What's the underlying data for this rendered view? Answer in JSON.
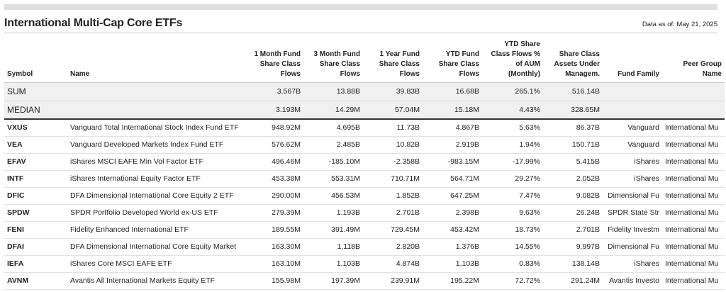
{
  "page": {
    "title": "International Multi-Cap Core ETFs",
    "as_of": "Data as of: May 21, 2025"
  },
  "columns": {
    "symbol": "Symbol",
    "name": "Name",
    "flows_1m_l1": "1 Month Fund",
    "flows_1m_l2": "Share Class",
    "flows_1m_l3": "Flows",
    "flows_3m_l1": "3 Month Fund",
    "flows_3m_l2": "Share Class",
    "flows_3m_l3": "Flows",
    "flows_1y_l1": "1 Year Fund",
    "flows_1y_l2": "Share Class",
    "flows_1y_l3": "Flows",
    "flows_ytd_l1": "YTD Fund",
    "flows_ytd_l2": "Share Class",
    "flows_ytd_l3": "Flows",
    "pct_aum_l1": "YTD Share",
    "pct_aum_l2": "Class Flows %",
    "pct_aum_l3": "of AUM",
    "pct_aum_l4": "(Monthly)",
    "aum_l1": "Share Class",
    "aum_l2": "Assets Under",
    "aum_l3": "Managem.",
    "family": "Fund Family",
    "peer_l1": "Peer Group",
    "peer_l2": "Name"
  },
  "summary": [
    {
      "label": "SUM",
      "m1": "3.567B",
      "m3": "13.88B",
      "y1": "39.83B",
      "ytd": "16.68B",
      "pct": "265.1%",
      "aum": "516.14B"
    },
    {
      "label": "MEDIAN",
      "m1": "3.193M",
      "m3": "14.29M",
      "y1": "57.04M",
      "ytd": "15.18M",
      "pct": "4.43%",
      "aum": "328.65M"
    }
  ],
  "rows": [
    {
      "symbol": "VXUS",
      "name": "Vanguard Total International Stock Index Fund ETF",
      "m1": "948.92M",
      "m3": "4.695B",
      "y1": "11.73B",
      "ytd": "4.867B",
      "pct": "5.63%",
      "aum": "86.37B",
      "family": "Vanguard",
      "peer": "International Mu"
    },
    {
      "symbol": "VEA",
      "name": "Vanguard Developed Markets Index Fund ETF",
      "m1": "576.62M",
      "m3": "2.485B",
      "y1": "10.82B",
      "ytd": "2.919B",
      "pct": "1.94%",
      "aum": "150.71B",
      "family": "Vanguard",
      "peer": "International Mu"
    },
    {
      "symbol": "EFAV",
      "name": "iShares MSCI EAFE Min Vol Factor ETF",
      "m1": "496.46M",
      "m3": "-185.10M",
      "y1": "-2.358B",
      "ytd": "-983.15M",
      "pct": "-17.99%",
      "aum": "5.415B",
      "family": "iShares",
      "peer": "International Mu"
    },
    {
      "symbol": "INTF",
      "name": "iShares International Equity Factor ETF",
      "m1": "453.38M",
      "m3": "553.31M",
      "y1": "710.71M",
      "ytd": "564.71M",
      "pct": "29.27%",
      "aum": "2.052B",
      "family": "iShares",
      "peer": "International Mu"
    },
    {
      "symbol": "DFIC",
      "name": "DFA Dimensional International Core Equity 2 ETF",
      "m1": "290.00M",
      "m3": "456.53M",
      "y1": "1.852B",
      "ytd": "647.25M",
      "pct": "7.47%",
      "aum": "9.082B",
      "family": "Dimensional Fu",
      "peer": "International Mu"
    },
    {
      "symbol": "SPDW",
      "name": "SPDR Portfolio Developed World ex-US ETF",
      "m1": "279.39M",
      "m3": "1.193B",
      "y1": "2.701B",
      "ytd": "2.398B",
      "pct": "9.63%",
      "aum": "26.24B",
      "family": "SPDR State Str",
      "peer": "International Mu"
    },
    {
      "symbol": "FENI",
      "name": "Fidelity Enhanced International ETF",
      "m1": "189.55M",
      "m3": "391.49M",
      "y1": "729.45M",
      "ytd": "453.42M",
      "pct": "18.73%",
      "aum": "2.701B",
      "family": "Fidelity Investm",
      "peer": "International Mu"
    },
    {
      "symbol": "DFAI",
      "name": "DFA Dimensional International Core Equity Market",
      "m1": "163.30M",
      "m3": "1.118B",
      "y1": "2.820B",
      "ytd": "1.376B",
      "pct": "14.55%",
      "aum": "9.997B",
      "family": "Dimensional Fu",
      "peer": "International Mu"
    },
    {
      "symbol": "IEFA",
      "name": "iShares Core MSCI EAFE ETF",
      "m1": "163.10M",
      "m3": "1.103B",
      "y1": "4.874B",
      "ytd": "1.103B",
      "pct": "0.83%",
      "aum": "138.14B",
      "family": "iShares",
      "peer": "International Mu"
    },
    {
      "symbol": "AVNM",
      "name": "Avantis All International Markets Equity ETF",
      "m1": "155.98M",
      "m3": "197.39M",
      "y1": "239.91M",
      "ytd": "195.22M",
      "pct": "72.72%",
      "aum": "291.24M",
      "family": "Avantis Investo",
      "peer": "International Mu"
    }
  ]
}
